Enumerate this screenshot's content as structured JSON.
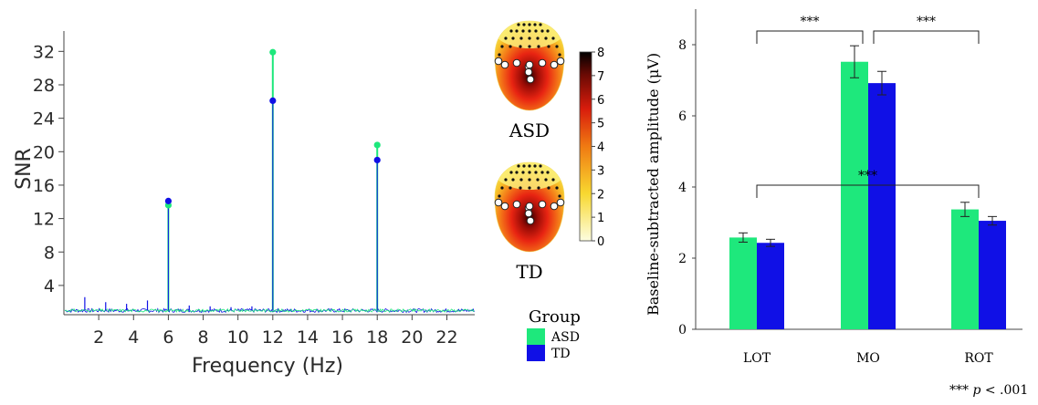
{
  "colors": {
    "asd": "#1ee87c",
    "td": "#1010e6",
    "topo_low": "#fdfde0",
    "topo_mid": "#e8200e",
    "topo_high": "#000000"
  },
  "legend": {
    "title": "Group",
    "items": [
      {
        "label": "ASD",
        "color": "#1ee87c"
      },
      {
        "label": "TD",
        "color": "#1010e6"
      }
    ]
  },
  "topomaps": {
    "labels": [
      "ASD",
      "TD"
    ],
    "colorbar_ticks": [
      "8",
      "7",
      "6",
      "5",
      "4",
      "3",
      "2",
      "1",
      "0"
    ],
    "colorbar_range": [
      0,
      8
    ]
  },
  "significance_note": {
    "stars": "***",
    "p": "p",
    "rest": " < .001"
  },
  "chart_data": [
    {
      "type": "line",
      "xlabel": "Frequency (Hz)",
      "ylabel": "SNR",
      "xlim": [
        0,
        23.6
      ],
      "ylim": [
        0.5,
        34
      ],
      "x_ticks": [
        2,
        4,
        6,
        8,
        10,
        12,
        14,
        16,
        18,
        20,
        22
      ],
      "y_ticks": [
        4,
        8,
        12,
        16,
        20,
        24,
        28,
        32
      ],
      "series": [
        {
          "name": "ASD",
          "peaks": [
            {
              "x": 6,
              "y": 13.6
            },
            {
              "x": 12,
              "y": 31.9
            },
            {
              "x": 18,
              "y": 20.8
            }
          ]
        },
        {
          "name": "TD",
          "peaks": [
            {
              "x": 6,
              "y": 14.1
            },
            {
              "x": 12,
              "y": 26.1
            },
            {
              "x": 18,
              "y": 19.0
            }
          ]
        }
      ],
      "baseline": 1.0
    },
    {
      "type": "bar",
      "ylabel": "Baseline-subtracted amplitude (μV)",
      "categories": [
        "LOT",
        "MO",
        "ROT"
      ],
      "ylim": [
        0,
        9
      ],
      "y_ticks": [
        0,
        2,
        4,
        6,
        8
      ],
      "series": [
        {
          "name": "ASD",
          "values": [
            2.58,
            7.52,
            3.37
          ],
          "errors": [
            0.13,
            0.45,
            0.2
          ]
        },
        {
          "name": "TD",
          "values": [
            2.43,
            6.92,
            3.05
          ],
          "errors": [
            0.1,
            0.33,
            0.12
          ]
        }
      ],
      "annotations": [
        {
          "from": "LOT",
          "to": "MO",
          "label": "***"
        },
        {
          "from": "MO",
          "to": "ROT",
          "label": "***"
        },
        {
          "from": "LOT",
          "to": "ROT",
          "label": "***"
        }
      ]
    }
  ]
}
